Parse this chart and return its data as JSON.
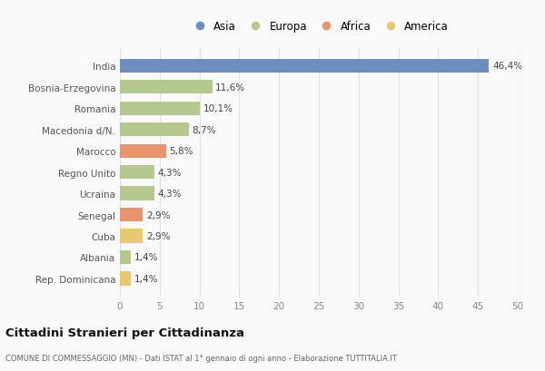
{
  "categories": [
    "India",
    "Bosnia-Erzegovina",
    "Romania",
    "Macedonia d/N.",
    "Marocco",
    "Regno Unito",
    "Ucraina",
    "Senegal",
    "Cuba",
    "Albania",
    "Rep. Dominicana"
  ],
  "values": [
    46.4,
    11.6,
    10.1,
    8.7,
    5.8,
    4.3,
    4.3,
    2.9,
    2.9,
    1.4,
    1.4
  ],
  "labels": [
    "46,4%",
    "11,6%",
    "10,1%",
    "8,7%",
    "5,8%",
    "4,3%",
    "4,3%",
    "2,9%",
    "2,9%",
    "1,4%",
    "1,4%"
  ],
  "colors": [
    "#6d8fbe",
    "#b5c98e",
    "#b5c98e",
    "#b5c98e",
    "#e8956d",
    "#b5c98e",
    "#b5c98e",
    "#e8956d",
    "#e8c96d",
    "#b5c98e",
    "#e8c96d"
  ],
  "legend": [
    {
      "label": "Asia",
      "color": "#6d8fbe"
    },
    {
      "label": "Europa",
      "color": "#b5c98e"
    },
    {
      "label": "Africa",
      "color": "#e8956d"
    },
    {
      "label": "America",
      "color": "#e8c96d"
    }
  ],
  "xlim": [
    0,
    50
  ],
  "xticks": [
    0,
    5,
    10,
    15,
    20,
    25,
    30,
    35,
    40,
    45,
    50
  ],
  "title": "Cittadini Stranieri per Cittadinanza",
  "subtitle": "COMUNE DI COMMESSAGGIO (MN) - Dati ISTAT al 1° gennaio di ogni anno - Elaborazione TUTTITALIA.IT",
  "bg_color": "#f9f9f9",
  "grid_color": "#e0e0e0",
  "bar_height": 0.65
}
